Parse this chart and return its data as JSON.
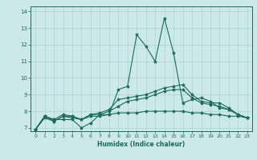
{
  "xlabel": "Humidex (Indice chaleur)",
  "xlim": [
    -0.5,
    23.5
  ],
  "ylim": [
    6.8,
    14.3
  ],
  "yticks": [
    7,
    8,
    9,
    10,
    11,
    12,
    13,
    14
  ],
  "xticks": [
    0,
    1,
    2,
    3,
    4,
    5,
    6,
    7,
    8,
    9,
    10,
    11,
    12,
    13,
    14,
    15,
    16,
    17,
    18,
    19,
    20,
    21,
    22,
    23
  ],
  "background_color": "#cce8e8",
  "grid_color": "#aad0d0",
  "line_color": "#1a6b5a",
  "lines": [
    [
      6.9,
      7.7,
      7.5,
      7.5,
      7.5,
      7.0,
      7.3,
      7.8,
      7.8,
      9.3,
      9.5,
      12.6,
      11.9,
      11.0,
      13.6,
      11.5,
      8.5,
      8.7,
      8.8,
      8.6,
      8.2,
      8.1,
      7.8,
      7.6
    ],
    [
      6.9,
      7.7,
      7.5,
      7.8,
      7.7,
      7.5,
      7.8,
      7.9,
      8.1,
      8.7,
      8.8,
      8.9,
      9.0,
      9.2,
      9.4,
      9.5,
      9.6,
      9.0,
      8.6,
      8.5,
      8.5,
      8.2,
      7.8,
      7.6
    ],
    [
      6.9,
      7.7,
      7.4,
      7.7,
      7.7,
      7.5,
      7.8,
      7.8,
      8.0,
      8.3,
      8.6,
      8.7,
      8.8,
      9.0,
      9.2,
      9.3,
      9.3,
      8.8,
      8.5,
      8.4,
      8.3,
      8.1,
      7.8,
      7.6
    ],
    [
      6.9,
      7.6,
      7.4,
      7.7,
      7.6,
      7.5,
      7.7,
      7.7,
      7.8,
      7.9,
      7.9,
      7.9,
      8.0,
      8.0,
      8.0,
      8.0,
      8.0,
      7.9,
      7.9,
      7.8,
      7.8,
      7.7,
      7.7,
      7.6
    ]
  ]
}
